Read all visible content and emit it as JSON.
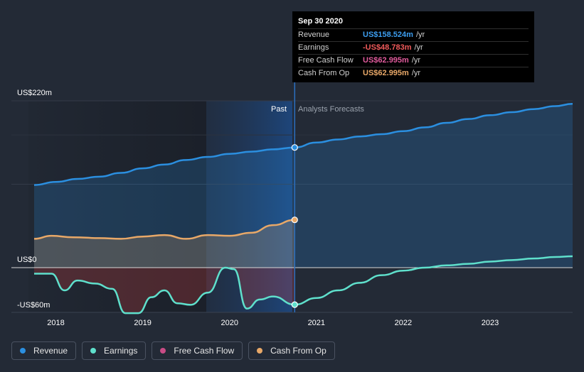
{
  "tooltip": {
    "date": "Sep 30 2020",
    "unit": "/yr",
    "rows": [
      {
        "label": "Revenue",
        "value": "US$158.524m",
        "color": "#3d9ef0"
      },
      {
        "label": "Earnings",
        "value": "-US$48.783m",
        "color": "#f15b5b"
      },
      {
        "label": "Free Cash Flow",
        "value": "US$62.995m",
        "color": "#e05b9c"
      },
      {
        "label": "Cash From Op",
        "value": "US$62.995m",
        "color": "#e8a868"
      }
    ]
  },
  "regions": {
    "past_label": "Past",
    "forecast_label": "Analysts Forecasts"
  },
  "legend": [
    {
      "label": "Revenue",
      "color": "#2b8fe0"
    },
    {
      "label": "Earnings",
      "color": "#5fe0cc"
    },
    {
      "label": "Free Cash Flow",
      "color": "#c94c86"
    },
    {
      "label": "Cash From Op",
      "color": "#e8a868"
    }
  ],
  "chart_data": {
    "type": "line",
    "title": "",
    "xlabel": "",
    "ylabel": "",
    "x_ticks": [
      "2018",
      "2019",
      "2020",
      "2021",
      "2022",
      "2023"
    ],
    "y_ticks": [
      "US$220m",
      "US$0",
      "-US$60m"
    ],
    "y_tick_values": [
      220,
      0,
      -60
    ],
    "ylim": [
      -70,
      220
    ],
    "xlim": [
      2017.5,
      2023.95
    ],
    "divider_x": 2020.75,
    "highlight_from_x": 2019.75,
    "grid": true,
    "series": [
      {
        "name": "Revenue",
        "color": "#2b8fe0",
        "points": [
          [
            2017.75,
            109
          ],
          [
            2018.0,
            113
          ],
          [
            2018.25,
            117
          ],
          [
            2018.5,
            120
          ],
          [
            2018.75,
            125
          ],
          [
            2019.0,
            131
          ],
          [
            2019.25,
            136
          ],
          [
            2019.5,
            142
          ],
          [
            2019.75,
            146
          ],
          [
            2020.0,
            150
          ],
          [
            2020.25,
            153
          ],
          [
            2020.5,
            156
          ],
          [
            2020.75,
            158.5
          ],
          [
            2021.0,
            165
          ],
          [
            2021.25,
            169
          ],
          [
            2021.5,
            173
          ],
          [
            2021.75,
            176
          ],
          [
            2022.0,
            180
          ],
          [
            2022.25,
            185
          ],
          [
            2022.5,
            191
          ],
          [
            2022.75,
            196
          ],
          [
            2023.0,
            201
          ],
          [
            2023.25,
            205
          ],
          [
            2023.5,
            209
          ],
          [
            2023.75,
            213
          ],
          [
            2023.95,
            216
          ]
        ]
      },
      {
        "name": "Earnings",
        "color": "#5fe0cc",
        "points": [
          [
            2017.75,
            -8
          ],
          [
            2017.95,
            -8
          ],
          [
            2018.1,
            -30
          ],
          [
            2018.25,
            -17
          ],
          [
            2018.45,
            -21
          ],
          [
            2018.65,
            -28
          ],
          [
            2018.8,
            -60
          ],
          [
            2018.95,
            -60
          ],
          [
            2019.1,
            -39
          ],
          [
            2019.25,
            -30
          ],
          [
            2019.4,
            -47
          ],
          [
            2019.55,
            -49
          ],
          [
            2019.75,
            -33
          ],
          [
            2019.95,
            0
          ],
          [
            2020.05,
            -2
          ],
          [
            2020.2,
            -54
          ],
          [
            2020.35,
            -42
          ],
          [
            2020.5,
            -38
          ],
          [
            2020.75,
            -48.8
          ],
          [
            2021.0,
            -40
          ],
          [
            2021.25,
            -30
          ],
          [
            2021.5,
            -20
          ],
          [
            2021.75,
            -10
          ],
          [
            2022.0,
            -4
          ],
          [
            2022.25,
            0
          ],
          [
            2022.5,
            3
          ],
          [
            2022.75,
            5
          ],
          [
            2023.0,
            8
          ],
          [
            2023.25,
            10
          ],
          [
            2023.5,
            12
          ],
          [
            2023.75,
            14
          ],
          [
            2023.95,
            15
          ]
        ]
      },
      {
        "name": "Cash From Op",
        "color": "#e8a868",
        "points": [
          [
            2017.75,
            38
          ],
          [
            2017.95,
            42
          ],
          [
            2018.2,
            40
          ],
          [
            2018.5,
            39
          ],
          [
            2018.75,
            38
          ],
          [
            2019.0,
            41
          ],
          [
            2019.25,
            43
          ],
          [
            2019.5,
            38
          ],
          [
            2019.75,
            43
          ],
          [
            2020.0,
            42
          ],
          [
            2020.25,
            46
          ],
          [
            2020.5,
            56
          ],
          [
            2020.75,
            63
          ]
        ]
      }
    ]
  }
}
